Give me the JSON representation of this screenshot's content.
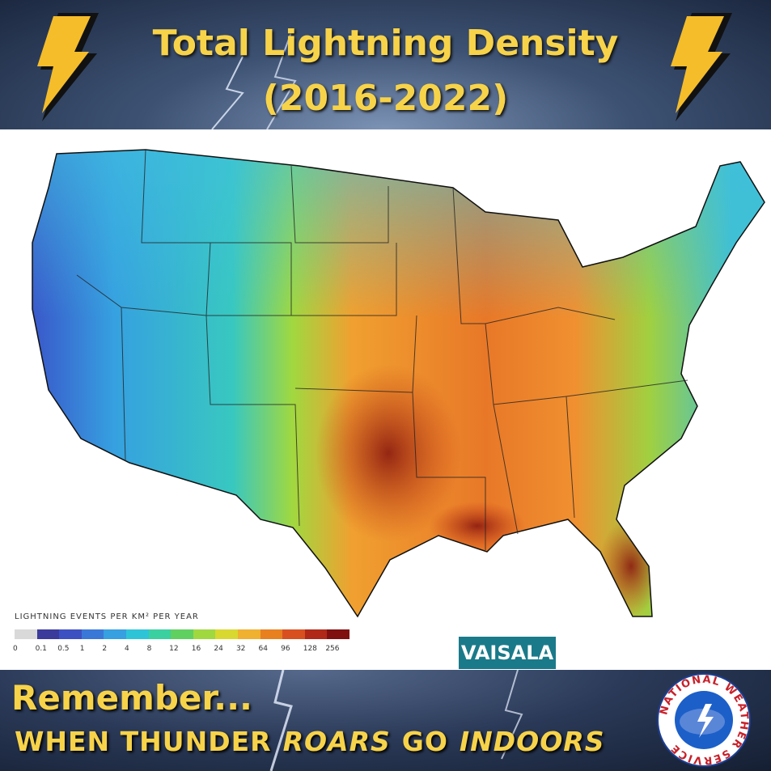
{
  "header": {
    "title": "Total Lightning Density",
    "subtitle": "(2016-2022)"
  },
  "legend": {
    "title": "LIGHTNING EVENTS PER KM² PER YEAR",
    "items": [
      {
        "label": 0,
        "color": "#d9d9d9"
      },
      {
        "label": 0.1,
        "color": "#3b3b9c"
      },
      {
        "label": 0.5,
        "color": "#3d50c2"
      },
      {
        "label": 1,
        "color": "#3a78d8"
      },
      {
        "label": 2,
        "color": "#36a0e0"
      },
      {
        "label": 4,
        "color": "#2ec4d8"
      },
      {
        "label": 8,
        "color": "#3ad0a0"
      },
      {
        "label": 12,
        "color": "#60d060"
      },
      {
        "label": 16,
        "color": "#a0d840"
      },
      {
        "label": 24,
        "color": "#d8d830"
      },
      {
        "label": 32,
        "color": "#f0b030"
      },
      {
        "label": 64,
        "color": "#e88020"
      },
      {
        "label": 96,
        "color": "#d85020"
      },
      {
        "label": 128,
        "color": "#b02818"
      },
      {
        "label": 256,
        "color": "#801010"
      }
    ]
  },
  "credit": "VAISALA",
  "footer": {
    "line1": "Remember...",
    "line2": [
      {
        "text": "WHEN THUNDER",
        "italic": false
      },
      {
        "text": "ROARS",
        "italic": true
      },
      {
        "text": "GO",
        "italic": false
      },
      {
        "text": "INDOORS",
        "italic": true
      }
    ]
  },
  "logo": {
    "text": "NATIONAL WEATHER SERVICE"
  }
}
